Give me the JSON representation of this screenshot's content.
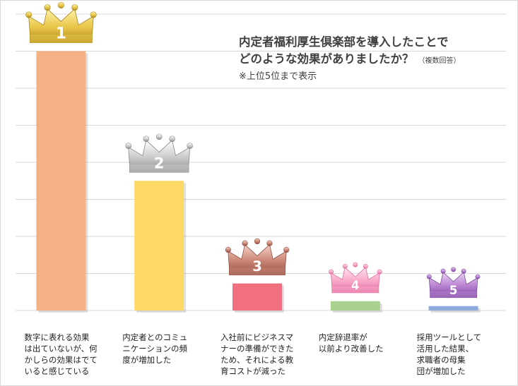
{
  "chart_data": {
    "type": "bar",
    "title_line1": "内定者福利厚生倶楽部を導入したことで",
    "title_line2": "どのような効果がありましたか？",
    "title_note": "（複数回答）",
    "subtitle": "※上位5位まで表示",
    "xlabel": "",
    "ylabel": "",
    "ylim": [
      0,
      8
    ],
    "grid": true,
    "categories": [
      "数字に表れる効果は出ていないが、何かしらの効果はでていると感じている",
      "内定者とのコミュニケーションの頻度が増加した",
      "入社前にビジネスマナーの準備ができたため、それによる教育コストが減った",
      "内定辞退率が以前より改善した",
      "採用ツールとして活用した結果、求職者の母集団が増加した"
    ],
    "category_lines": [
      [
        "数字に表れる効果",
        "は出ていないが、何",
        "かしらの効果はでて",
        "いると感じている"
      ],
      [
        "内定者とのコミュ",
        "ニケーションの頻",
        "度が増加した"
      ],
      [
        "入社前にビジネスマ",
        "ナーの準備ができた",
        "ため、それによる教",
        "育コストが減った"
      ],
      [
        "内定辞退率が",
        "以前より改善した"
      ],
      [
        "採用ツールとして",
        "活用した結果、",
        "求職者の母集",
        "団が増加した"
      ]
    ],
    "values": [
      7.0,
      3.5,
      0.73,
      0.25,
      0.12
    ],
    "ranks": [
      "1",
      "2",
      "3",
      "4",
      "5"
    ],
    "bar_colors": [
      "#f4b183",
      "#ffd966",
      "#f07080",
      "#a9d18e",
      "#8faadc"
    ],
    "crown_colors": [
      {
        "light": "#fff2a8",
        "mid": "#e8c547",
        "dark": "#a8861c"
      },
      {
        "light": "#ffffff",
        "mid": "#c9c9c9",
        "dark": "#8a8a8a"
      },
      {
        "light": "#f6d2c7",
        "mid": "#c98373",
        "dark": "#8f4e42"
      },
      {
        "light": "#ffe3ef",
        "mid": "#f7a6c8",
        "dark": "#e06a9c"
      },
      {
        "light": "#ead7f3",
        "mid": "#b77fd0",
        "dark": "#7d4a9e"
      }
    ]
  }
}
